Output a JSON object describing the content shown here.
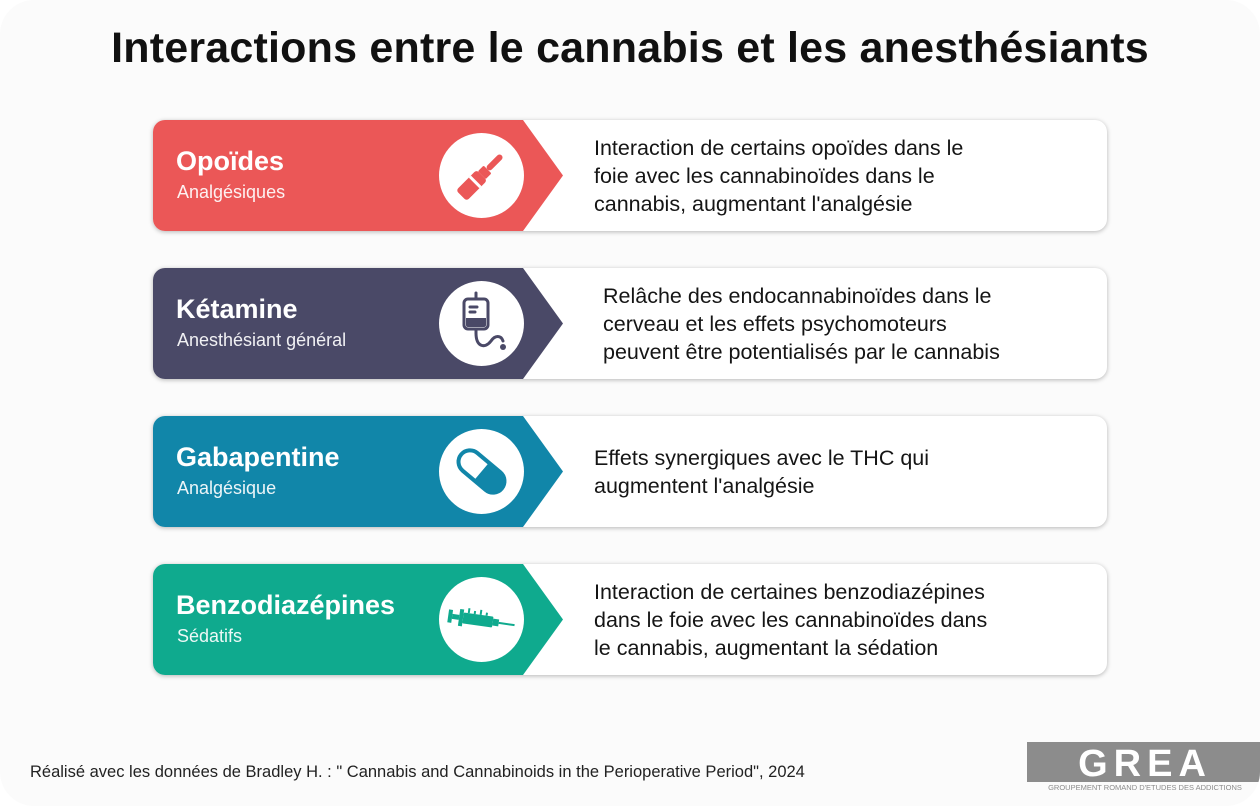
{
  "title": "Interactions entre le cannabis et les anesthésiants",
  "items": [
    {
      "name": "Opoïdes",
      "category": "Analgésiques",
      "icon": "ampoule-icon",
      "color": "#EB5757",
      "description": "Interaction de certains opoïdes dans le\nfoie avec les cannabinoïdes dans le\ncannabis, augmentant l'analgésie"
    },
    {
      "name": "Kétamine",
      "category": "Anesthésiant général",
      "icon": "iv-bag-icon",
      "color": "#4A4967",
      "description": "Relâche des endocannabinoïdes dans le\ncerveau et les effets psychomoteurs\npeuvent être potentialisés par le cannabis"
    },
    {
      "name": "Gabapentine",
      "category": "Analgésique",
      "icon": "capsule-icon",
      "color": "#1186A9",
      "description": "Effets synergiques avec le THC qui\naugmentent l'analgésie"
    },
    {
      "name": "Benzodiazépines",
      "category": "Sédatifs",
      "icon": "syringe-icon",
      "color": "#0FAA8E",
      "description": "Interaction de certaines benzodiazépines\ndans le foie avec les cannabinoïdes dans\nle cannabis, augmentant la sédation"
    }
  ],
  "footer": "Réalisé avec les données de Bradley H. : \" Cannabis and Cannabinoids in the Perioperative Period\", 2024",
  "logo": {
    "text": "GREA",
    "subtitle": "GROUPEMENT ROMAND D'ETUDES DES ADDICTIONS",
    "color": "#8C8C8C"
  }
}
